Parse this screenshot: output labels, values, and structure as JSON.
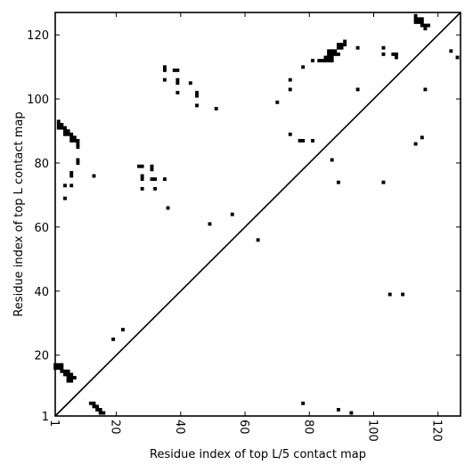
{
  "chart_data": {
    "type": "heatmap",
    "title": "",
    "xlabel": "Residue index of top L/5 contact map",
    "ylabel": "Residue index of top L contact map",
    "xlim": [
      1,
      127
    ],
    "ylim": [
      1,
      127
    ],
    "x_ticks": [
      1,
      20,
      40,
      60,
      80,
      100,
      120
    ],
    "y_ticks": [
      1,
      20,
      40,
      60,
      80,
      100,
      120
    ],
    "x_tick_labels": [
      "1",
      "20",
      "40",
      "60",
      "80",
      "100",
      "120"
    ],
    "y_tick_labels": [
      "1",
      "20",
      "40",
      "60",
      "80",
      "100",
      "120"
    ],
    "diagonal": true,
    "color": "#000000",
    "grid": false,
    "upper_contacts": [
      [
        2,
        93
      ],
      [
        2,
        92
      ],
      [
        2,
        91
      ],
      [
        3,
        92
      ],
      [
        3,
        91
      ],
      [
        4,
        91
      ],
      [
        4,
        90
      ],
      [
        4,
        89
      ],
      [
        5,
        90
      ],
      [
        5,
        89
      ],
      [
        6,
        89
      ],
      [
        6,
        88
      ],
      [
        6,
        87
      ],
      [
        7,
        88
      ],
      [
        7,
        87
      ],
      [
        8,
        87
      ],
      [
        8,
        86
      ],
      [
        8,
        85
      ],
      [
        8,
        81
      ],
      [
        8,
        80
      ],
      [
        6,
        77
      ],
      [
        6,
        76
      ],
      [
        4,
        73
      ],
      [
        6,
        73
      ],
      [
        4,
        69
      ],
      [
        13,
        76
      ],
      [
        27,
        79
      ],
      [
        28,
        79
      ],
      [
        28,
        76
      ],
      [
        28,
        75
      ],
      [
        28,
        72
      ],
      [
        31,
        79
      ],
      [
        31,
        78
      ],
      [
        31,
        75
      ],
      [
        32,
        75
      ],
      [
        32,
        72
      ],
      [
        35,
        75
      ],
      [
        36,
        66
      ],
      [
        35,
        110
      ],
      [
        35,
        109
      ],
      [
        35,
        106
      ],
      [
        38,
        109
      ],
      [
        39,
        109
      ],
      [
        39,
        106
      ],
      [
        39,
        105
      ],
      [
        39,
        102
      ],
      [
        43,
        105
      ],
      [
        45,
        102
      ],
      [
        45,
        101
      ],
      [
        45,
        98
      ],
      [
        51,
        97
      ],
      [
        49,
        61
      ],
      [
        56,
        64
      ],
      [
        64,
        56
      ],
      [
        70,
        99
      ],
      [
        74,
        106
      ],
      [
        74,
        103
      ],
      [
        74,
        89
      ],
      [
        77,
        87
      ],
      [
        78,
        110
      ],
      [
        78,
        87
      ],
      [
        81,
        112
      ],
      [
        81,
        87
      ],
      [
        83,
        112
      ],
      [
        84,
        112
      ],
      [
        85,
        113
      ],
      [
        85,
        112
      ],
      [
        86,
        115
      ],
      [
        86,
        114
      ],
      [
        86,
        113
      ],
      [
        86,
        112
      ],
      [
        87,
        115
      ],
      [
        87,
        114
      ],
      [
        87,
        113
      ],
      [
        87,
        112
      ],
      [
        88,
        115
      ],
      [
        88,
        114
      ],
      [
        89,
        117
      ],
      [
        89,
        116
      ],
      [
        89,
        114
      ],
      [
        90,
        117
      ],
      [
        90,
        116
      ],
      [
        91,
        118
      ],
      [
        91,
        117
      ],
      [
        87,
        81
      ],
      [
        89,
        74
      ],
      [
        95,
        116
      ],
      [
        95,
        103
      ],
      [
        103,
        116
      ],
      [
        103,
        114
      ],
      [
        103,
        74
      ],
      [
        106,
        114
      ],
      [
        107,
        114
      ],
      [
        107,
        113
      ],
      [
        113,
        126
      ],
      [
        113,
        125
      ],
      [
        113,
        124
      ],
      [
        113,
        86
      ],
      [
        114,
        125
      ],
      [
        114,
        124
      ],
      [
        115,
        125
      ],
      [
        115,
        124
      ],
      [
        115,
        123
      ],
      [
        115,
        88
      ],
      [
        116,
        123
      ],
      [
        116,
        122
      ],
      [
        116,
        103
      ],
      [
        117,
        123
      ],
      [
        124,
        115
      ],
      [
        126,
        113
      ]
    ],
    "lower_contacts": [
      [
        1,
        17
      ],
      [
        1,
        16
      ],
      [
        2,
        17
      ],
      [
        2,
        16
      ],
      [
        3,
        17
      ],
      [
        3,
        16
      ],
      [
        3,
        15
      ],
      [
        4,
        15
      ],
      [
        4,
        14
      ],
      [
        5,
        15
      ],
      [
        5,
        14
      ],
      [
        5,
        13
      ],
      [
        5,
        12
      ],
      [
        6,
        14
      ],
      [
        6,
        13
      ],
      [
        6,
        12
      ],
      [
        7,
        13
      ],
      [
        12,
        5
      ],
      [
        13,
        5
      ],
      [
        13,
        4
      ],
      [
        14,
        4
      ],
      [
        14,
        3
      ],
      [
        15,
        3
      ],
      [
        15,
        2
      ],
      [
        16,
        2
      ],
      [
        19,
        25
      ],
      [
        22,
        28
      ],
      [
        78,
        5
      ],
      [
        89,
        3
      ],
      [
        93,
        2
      ],
      [
        105,
        39
      ],
      [
        109,
        39
      ]
    ]
  }
}
